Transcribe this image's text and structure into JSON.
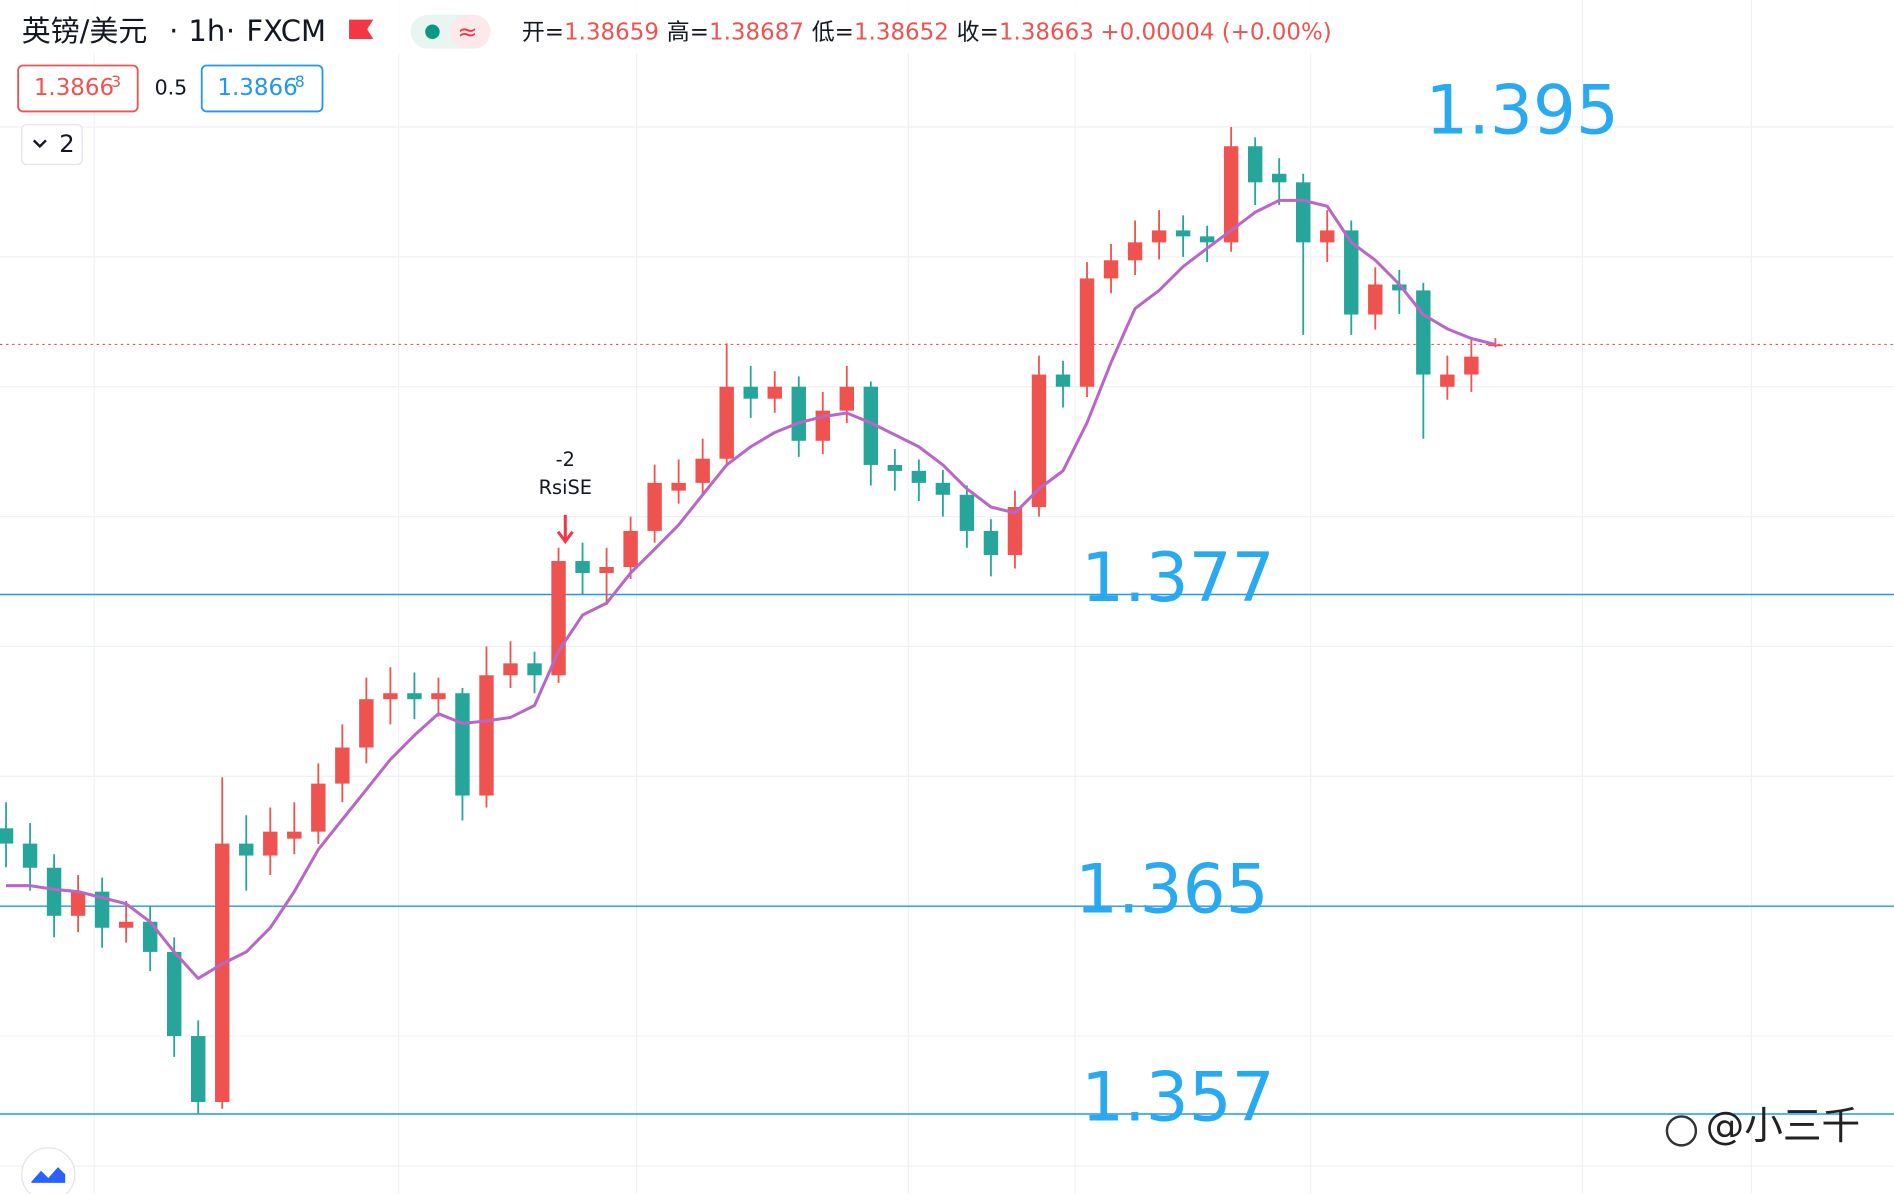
{
  "header": {
    "symbol": "英镑/美元",
    "interval": "1h",
    "exchange": "FXCM",
    "ohlc_labels": [
      "开=",
      "高=",
      "低=",
      "收="
    ],
    "change": "+0.00004 (+0.00%)",
    "sell_price": "1.3866",
    "sell_pip": "3",
    "spread": "0.5",
    "buy_price": "1.3866",
    "buy_pip": "8",
    "indicator_count": "2"
  },
  "chart_data": {
    "type": "candlestick",
    "open": [
      1.368,
      1.36741,
      1.36648,
      1.36463,
      1.36556,
      1.36417,
      1.3644,
      1.36324,
      1.36,
      1.35746,
      1.36741,
      1.36695,
      1.3676,
      1.36787,
      1.36972,
      1.37111,
      1.37297,
      1.3732,
      1.37297,
      1.3732,
      1.36926,
      1.37389,
      1.37435,
      1.37389,
      1.37829,
      1.37783,
      1.37806,
      1.37945,
      1.381,
      1.3813,
      1.38223,
      1.385,
      1.38454,
      1.385,
      1.38292,
      1.38408,
      1.385,
      1.38199,
      1.38176,
      1.3813,
      1.38084,
      1.37945,
      1.37852,
      1.38037,
      1.38547,
      1.385,
      1.38917,
      1.38987,
      1.39056,
      1.39102,
      1.39079,
      1.39056,
      1.39426,
      1.3932,
      1.39287,
      1.39056,
      1.39102,
      1.38778,
      1.38894,
      1.38871,
      1.385,
      1.38547,
      1.38659
    ],
    "high": [
      1.369,
      1.3682,
      1.367,
      1.3662,
      1.3661,
      1.3652,
      1.365,
      1.3638,
      1.3606,
      1.36996,
      1.3685,
      1.3688,
      1.369,
      1.3705,
      1.372,
      1.3738,
      1.3742,
      1.374,
      1.3738,
      1.3734,
      1.375,
      1.3752,
      1.3748,
      1.3788,
      1.379,
      1.3788,
      1.38,
      1.382,
      1.3822,
      1.383,
      1.38667,
      1.3858,
      1.3856,
      1.3854,
      1.3848,
      1.3858,
      1.3852,
      1.3826,
      1.3822,
      1.3818,
      1.3812,
      1.3799,
      1.381,
      1.3862,
      1.386,
      1.3898,
      1.3905,
      1.3914,
      1.3918,
      1.3916,
      1.3912,
      1.395,
      1.3946,
      1.3938,
      1.3932,
      1.3918,
      1.3914,
      1.3896,
      1.3895,
      1.389,
      1.3862,
      1.3868,
      1.38687
    ],
    "low": [
      1.3665,
      1.3656,
      1.3638,
      1.364,
      1.3634,
      1.3636,
      1.3625,
      1.3592,
      1.357,
      1.3572,
      1.3656,
      1.3662,
      1.367,
      1.3674,
      1.369,
      1.3705,
      1.372,
      1.3722,
      1.3723,
      1.3683,
      1.3688,
      1.3734,
      1.3732,
      1.3736,
      1.377,
      1.3766,
      1.3776,
      1.379,
      1.3805,
      1.3808,
      1.382,
      1.3838,
      1.384,
      1.3823,
      1.3824,
      1.3836,
      1.3812,
      1.381,
      1.3806,
      1.38,
      1.3788,
      1.3777,
      1.378,
      1.38,
      1.3842,
      1.3846,
      1.3886,
      1.3893,
      1.3899,
      1.39,
      1.3898,
      1.3902,
      1.392,
      1.392,
      1.387,
      1.3898,
      1.387,
      1.3872,
      1.3878,
      1.383,
      1.3845,
      1.3848,
      1.38652
    ],
    "close": [
      1.36741,
      1.36648,
      1.36463,
      1.36556,
      1.36417,
      1.3644,
      1.36324,
      1.36,
      1.35746,
      1.36741,
      1.36695,
      1.36787,
      1.36787,
      1.36972,
      1.37111,
      1.37297,
      1.3732,
      1.37297,
      1.3732,
      1.36926,
      1.37389,
      1.37435,
      1.37389,
      1.37829,
      1.37783,
      1.37806,
      1.37945,
      1.3813,
      1.3813,
      1.38223,
      1.385,
      1.38454,
      1.385,
      1.38292,
      1.38408,
      1.385,
      1.38199,
      1.38176,
      1.3813,
      1.38084,
      1.37945,
      1.37852,
      1.38037,
      1.38547,
      1.385,
      1.38917,
      1.38987,
      1.39056,
      1.39102,
      1.39079,
      1.39056,
      1.39426,
      1.39287,
      1.39287,
      1.39056,
      1.39102,
      1.38778,
      1.38894,
      1.38871,
      1.38547,
      1.38547,
      1.38616,
      1.38663
    ],
    "ma": {
      "color": "#b867c6",
      "values": [
        1.36579,
        1.36579,
        1.36565,
        1.36556,
        1.36533,
        1.36509,
        1.3644,
        1.36324,
        1.36222,
        1.36278,
        1.36324,
        1.36417,
        1.36556,
        1.36718,
        1.36834,
        1.36949,
        1.37065,
        1.37158,
        1.37241,
        1.37204,
        1.37213,
        1.37227,
        1.37273,
        1.37482,
        1.37621,
        1.37667,
        1.37783,
        1.37875,
        1.37968,
        1.38084,
        1.38199,
        1.38269,
        1.38324,
        1.38361,
        1.38385,
        1.38399,
        1.38361,
        1.38315,
        1.38269,
        1.38199,
        1.38107,
        1.38037,
        1.38014,
        1.38107,
        1.38176,
        1.38361,
        1.38593,
        1.38801,
        1.38871,
        1.38963,
        1.39033,
        1.39102,
        1.39172,
        1.39218,
        1.39218,
        1.39195,
        1.39056,
        1.38987,
        1.38894,
        1.38778,
        1.38723,
        1.38686,
        1.38663
      ]
    },
    "up_color": "#ef5350",
    "down_color": "#26a69a",
    "ylim": [
      1.35393,
      1.39988
    ],
    "yticks": [
      1.355,
      1.36,
      1.365,
      1.37,
      1.375,
      1.38,
      1.385,
      1.39,
      1.395
    ],
    "grid": true,
    "levels": [
      {
        "value": 1.395,
        "line": false
      },
      {
        "value": 1.377,
        "line": true
      },
      {
        "value": 1.365,
        "line": true
      },
      {
        "value": 1.357,
        "line": true
      }
    ],
    "level_color": "#2196f3",
    "level_text_color": "#29a9f0",
    "last_price_line": true,
    "signal": [
      "-2",
      "RsiSE"
    ]
  },
  "watermark": "@小三千"
}
